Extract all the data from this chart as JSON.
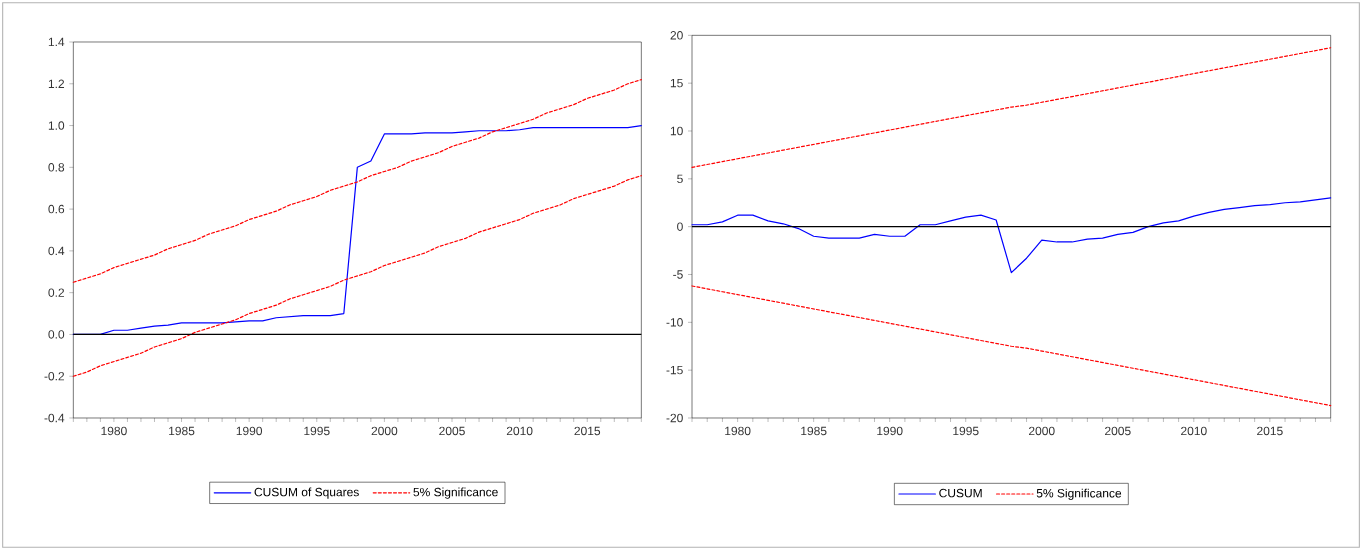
{
  "chart_data": [
    {
      "type": "line",
      "x": [
        1977,
        1978,
        1979,
        1980,
        1981,
        1982,
        1983,
        1984,
        1985,
        1986,
        1987,
        1988,
        1989,
        1990,
        1991,
        1992,
        1993,
        1994,
        1995,
        1996,
        1997,
        1998,
        1999,
        2000,
        2001,
        2002,
        2003,
        2004,
        2005,
        2006,
        2007,
        2008,
        2009,
        2010,
        2011,
        2012,
        2013,
        2014,
        2015,
        2016,
        2017,
        2018,
        2019
      ],
      "series": [
        {
          "name": "CUSUM of Squares",
          "color": "#0000ff",
          "line_style": "solid",
          "values": [
            0,
            0,
            0,
            0.02,
            0.02,
            0.03,
            0.04,
            0.045,
            0.055,
            0.055,
            0.055,
            0.055,
            0.06,
            0.065,
            0.065,
            0.08,
            0.085,
            0.09,
            0.09,
            0.09,
            0.1,
            0.8,
            0.83,
            0.96,
            0.96,
            0.96,
            0.965,
            0.965,
            0.965,
            0.97,
            0.975,
            0.975,
            0.975,
            0.98,
            0.99,
            0.99,
            0.99,
            0.99,
            0.99,
            0.99,
            0.99,
            0.99,
            1.0
          ]
        },
        {
          "name": "5% Significance",
          "color": "#ff0000",
          "line_style": "dashed",
          "values": [
            0.25,
            0.27,
            0.29,
            0.32,
            0.34,
            0.36,
            0.38,
            0.41,
            0.43,
            0.45,
            0.48,
            0.5,
            0.52,
            0.55,
            0.57,
            0.59,
            0.62,
            0.64,
            0.66,
            0.69,
            0.71,
            0.73,
            0.76,
            0.78,
            0.8,
            0.83,
            0.85,
            0.87,
            0.9,
            0.92,
            0.94,
            0.97,
            0.99,
            1.01,
            1.03,
            1.06,
            1.08,
            1.1,
            1.13,
            1.15,
            1.17,
            1.2,
            1.22
          ]
        },
        {
          "color": "#ff0000",
          "line_style": "dashed",
          "values": [
            -0.2,
            -0.18,
            -0.15,
            -0.13,
            -0.11,
            -0.09,
            -0.06,
            -0.04,
            -0.02,
            0.01,
            0.03,
            0.05,
            0.07,
            0.1,
            0.12,
            0.14,
            0.17,
            0.19,
            0.21,
            0.23,
            0.26,
            0.28,
            0.3,
            0.33,
            0.35,
            0.37,
            0.39,
            0.42,
            0.44,
            0.46,
            0.49,
            0.51,
            0.53,
            0.55,
            0.58,
            0.6,
            0.62,
            0.65,
            0.67,
            0.69,
            0.71,
            0.74,
            0.76
          ]
        }
      ],
      "xlim": [
        1977,
        2019
      ],
      "xticks": [
        {
          "value": 1977,
          "label": null
        },
        {
          "value": 1978,
          "label": null
        },
        {
          "value": 1979,
          "label": null
        },
        1980,
        {
          "value": 1981,
          "label": null
        },
        {
          "value": 1982,
          "label": null
        },
        {
          "value": 1983,
          "label": null
        },
        {
          "value": 1984,
          "label": null
        },
        1985,
        {
          "value": 1986,
          "label": null
        },
        {
          "value": 1987,
          "label": null
        },
        {
          "value": 1988,
          "label": null
        },
        {
          "value": 1989,
          "label": null
        },
        1990,
        {
          "value": 1991,
          "label": null
        },
        {
          "value": 1992,
          "label": null
        },
        {
          "value": 1993,
          "label": null
        },
        {
          "value": 1994,
          "label": null
        },
        1995,
        {
          "value": 1996,
          "label": null
        },
        {
          "value": 1997,
          "label": null
        },
        {
          "value": 1998,
          "label": null
        },
        {
          "value": 1999,
          "label": null
        },
        2000,
        {
          "value": 2001,
          "label": null
        },
        {
          "value": 2002,
          "label": null
        },
        {
          "value": 2003,
          "label": null
        },
        {
          "value": 2004,
          "label": null
        },
        2005,
        {
          "value": 2006,
          "label": null
        },
        {
          "value": 2007,
          "label": null
        },
        {
          "value": 2008,
          "label": null
        },
        {
          "value": 2009,
          "label": null
        },
        2010,
        {
          "value": 2011,
          "label": null
        },
        {
          "value": 2012,
          "label": null
        },
        {
          "value": 2013,
          "label": null
        },
        {
          "value": 2014,
          "label": null
        },
        2015,
        {
          "value": 2016,
          "label": null
        },
        {
          "value": 2017,
          "label": null
        },
        {
          "value": 2018,
          "label": null
        },
        {
          "value": 2019,
          "label": null
        }
      ],
      "ylim": [
        -0.4,
        1.4
      ],
      "yticks": [
        {
          "value": -0.4,
          "label": "-0.4"
        },
        {
          "value": -0.2,
          "label": "-0.2"
        },
        {
          "value": 0,
          "label": "0.0"
        },
        {
          "value": 0.2,
          "label": "0.2"
        },
        {
          "value": 0.4,
          "label": "0.4"
        },
        {
          "value": 0.6,
          "label": "0.6"
        },
        {
          "value": 0.8,
          "label": "0.8"
        },
        {
          "value": 1.0,
          "label": "1.0"
        },
        {
          "value": 1.2,
          "label": "1.2"
        },
        {
          "value": 1.4,
          "label": "1.4"
        }
      ],
      "ref_lines": [
        {
          "axis": "y",
          "value": 0,
          "color": "#000000"
        }
      ],
      "legend": "bottom",
      "marker": "none"
    },
    {
      "type": "line",
      "x": [
        1977,
        1978,
        1979,
        1980,
        1981,
        1982,
        1983,
        1984,
        1985,
        1986,
        1987,
        1988,
        1989,
        1990,
        1991,
        1992,
        1993,
        1994,
        1995,
        1996,
        1997,
        1998,
        1999,
        2000,
        2001,
        2002,
        2003,
        2004,
        2005,
        2006,
        2007,
        2008,
        2009,
        2010,
        2011,
        2012,
        2013,
        2014,
        2015,
        2016,
        2017,
        2018,
        2019
      ],
      "series": [
        {
          "name": "CUSUM",
          "color": "#0000ff",
          "line_style": "solid",
          "values": [
            0.2,
            0.2,
            0.5,
            1.2,
            1.2,
            0.6,
            0.3,
            -0.2,
            -1.0,
            -1.2,
            -1.2,
            -1.2,
            -0.8,
            -1.0,
            -1.0,
            0.2,
            0.2,
            0.6,
            1.0,
            1.2,
            0.7,
            -4.8,
            -3.3,
            -1.4,
            -1.6,
            -1.6,
            -1.3,
            -1.2,
            -0.8,
            -0.6,
            0,
            0.4,
            0.6,
            1.1,
            1.5,
            1.8,
            2.0,
            2.2,
            2.3,
            2.5,
            2.6,
            2.8,
            3.0
          ]
        },
        {
          "name": "5% Significance",
          "color": "#ff0000",
          "line_style": "dashed",
          "values": [
            6.2,
            6.5,
            6.8,
            7.1,
            7.4,
            7.7,
            8.0,
            8.3,
            8.6,
            8.9,
            9.2,
            9.5,
            9.8,
            10.1,
            10.4,
            10.7,
            11.0,
            11.3,
            11.6,
            11.9,
            12.2,
            12.5,
            12.7,
            13.0,
            13.3,
            13.6,
            13.9,
            14.2,
            14.5,
            14.8,
            15.1,
            15.4,
            15.7,
            16.0,
            16.3,
            16.6,
            16.9,
            17.2,
            17.5,
            17.8,
            18.1,
            18.4,
            18.7
          ]
        },
        {
          "color": "#ff0000",
          "line_style": "dashed",
          "values": [
            -6.2,
            -6.5,
            -6.8,
            -7.1,
            -7.4,
            -7.7,
            -8.0,
            -8.3,
            -8.6,
            -8.9,
            -9.2,
            -9.5,
            -9.8,
            -10.1,
            -10.4,
            -10.7,
            -11.0,
            -11.3,
            -11.6,
            -11.9,
            -12.2,
            -12.5,
            -12.7,
            -13.0,
            -13.3,
            -13.6,
            -13.9,
            -14.2,
            -14.5,
            -14.8,
            -15.1,
            -15.4,
            -15.7,
            -16.0,
            -16.3,
            -16.6,
            -16.9,
            -17.2,
            -17.5,
            -17.8,
            -18.1,
            -18.4,
            -18.7
          ]
        }
      ],
      "xlim": [
        1977,
        2019
      ],
      "xticks": [
        {
          "value": 1977,
          "label": null
        },
        {
          "value": 1978,
          "label": null
        },
        {
          "value": 1979,
          "label": null
        },
        1980,
        {
          "value": 1981,
          "label": null
        },
        {
          "value": 1982,
          "label": null
        },
        {
          "value": 1983,
          "label": null
        },
        {
          "value": 1984,
          "label": null
        },
        1985,
        {
          "value": 1986,
          "label": null
        },
        {
          "value": 1987,
          "label": null
        },
        {
          "value": 1988,
          "label": null
        },
        {
          "value": 1989,
          "label": null
        },
        1990,
        {
          "value": 1991,
          "label": null
        },
        {
          "value": 1992,
          "label": null
        },
        {
          "value": 1993,
          "label": null
        },
        {
          "value": 1994,
          "label": null
        },
        1995,
        {
          "value": 1996,
          "label": null
        },
        {
          "value": 1997,
          "label": null
        },
        {
          "value": 1998,
          "label": null
        },
        {
          "value": 1999,
          "label": null
        },
        2000,
        {
          "value": 2001,
          "label": null
        },
        {
          "value": 2002,
          "label": null
        },
        {
          "value": 2003,
          "label": null
        },
        {
          "value": 2004,
          "label": null
        },
        2005,
        {
          "value": 2006,
          "label": null
        },
        {
          "value": 2007,
          "label": null
        },
        {
          "value": 2008,
          "label": null
        },
        {
          "value": 2009,
          "label": null
        },
        2010,
        {
          "value": 2011,
          "label": null
        },
        {
          "value": 2012,
          "label": null
        },
        {
          "value": 2013,
          "label": null
        },
        {
          "value": 2014,
          "label": null
        },
        2015,
        {
          "value": 2016,
          "label": null
        },
        {
          "value": 2017,
          "label": null
        },
        {
          "value": 2018,
          "label": null
        },
        {
          "value": 2019,
          "label": null
        }
      ],
      "ylim": [
        -20,
        20
      ],
      "yticks": [
        -20,
        -15,
        -10,
        -5,
        0,
        5,
        10,
        15,
        20
      ],
      "ref_lines": [
        {
          "axis": "y",
          "value": 0,
          "color": "#000000"
        }
      ],
      "legend": "bottom",
      "marker": "none"
    }
  ]
}
